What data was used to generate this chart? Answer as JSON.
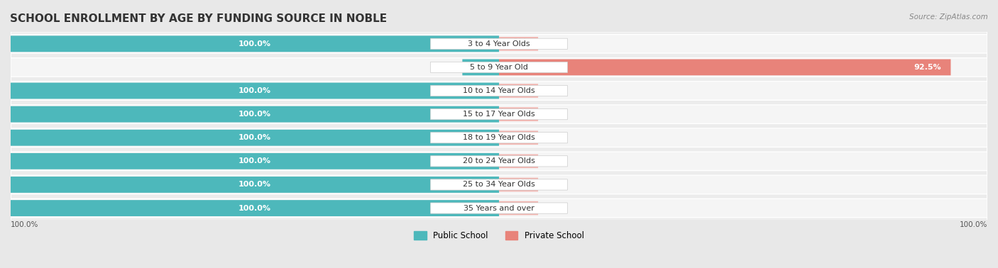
{
  "title": "SCHOOL ENROLLMENT BY AGE BY FUNDING SOURCE IN NOBLE",
  "source": "Source: ZipAtlas.com",
  "categories": [
    "3 to 4 Year Olds",
    "5 to 9 Year Old",
    "10 to 14 Year Olds",
    "15 to 17 Year Olds",
    "18 to 19 Year Olds",
    "20 to 24 Year Olds",
    "25 to 34 Year Olds",
    "35 Years and over"
  ],
  "public_values": [
    100.0,
    7.5,
    100.0,
    100.0,
    100.0,
    100.0,
    100.0,
    100.0
  ],
  "private_values": [
    0.0,
    92.5,
    0.0,
    0.0,
    0.0,
    0.0,
    0.0,
    0.0
  ],
  "public_color": "#4db8bb",
  "private_color": "#e8837a",
  "public_color_light": "#a8d8da",
  "private_color_light": "#f2b5b0",
  "bg_color": "#f0f0f0",
  "bar_bg_color": "#e8e8e8",
  "bar_row_bg": "#f5f5f5",
  "title_fontsize": 11,
  "label_fontsize": 8.5,
  "value_fontsize": 8,
  "legend_fontsize": 8.5,
  "xlim": [
    0,
    100
  ]
}
